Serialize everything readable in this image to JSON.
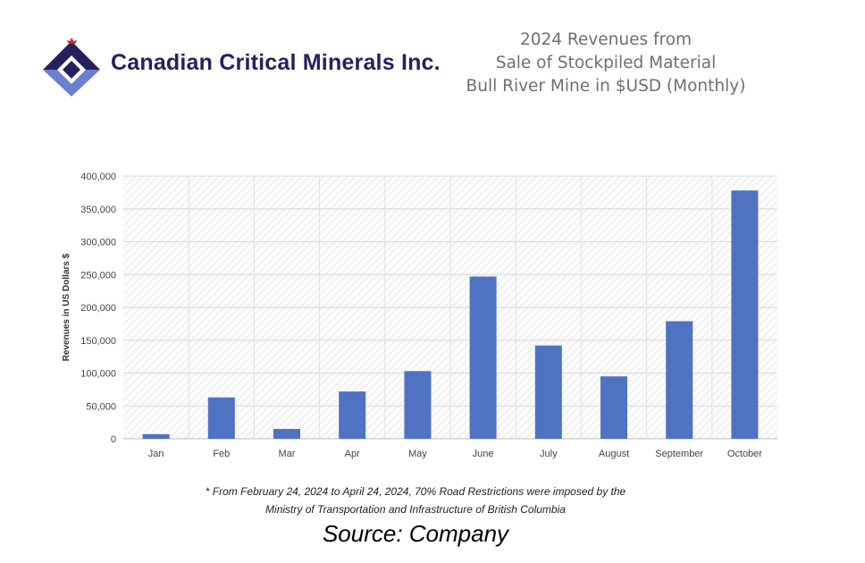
{
  "header": {
    "company_name": "Canadian Critical Minerals Inc.",
    "title_lines": [
      "2024 Revenues from",
      "Sale of Stockpiled Material",
      "Bull River Mine in $USD (Monthly)"
    ]
  },
  "chart_data": {
    "type": "bar",
    "categories": [
      "Jan",
      "Feb",
      "Mar",
      "Apr",
      "May",
      "June",
      "July",
      "August",
      "September",
      "October"
    ],
    "values": [
      7000,
      63000,
      15000,
      72000,
      103000,
      247000,
      142000,
      95000,
      179000,
      378000
    ],
    "title": "",
    "xlabel": "",
    "ylabel": "Revenues in US Dollars $",
    "ylim": [
      0,
      400000
    ],
    "yticks": [
      "0",
      "50,000",
      "100,000",
      "150,000",
      "200,000",
      "250,000",
      "300,000",
      "350,000",
      "400,000"
    ],
    "bar_color": "#4f72c3",
    "grid": true,
    "legend": "none"
  },
  "footnote": {
    "line1": "* From February 24, 2024 to April 24, 2024, 70% Road Restrictions were imposed by the",
    "line2": "Ministry of Transportation and Infrastructure of British Columbia"
  },
  "source": "Source: Company",
  "colors": {
    "brand_navy": "#25215e",
    "brand_blue": "#6a7fd0",
    "accent_red": "#d0242a",
    "title_gray": "#6f6f6f"
  }
}
